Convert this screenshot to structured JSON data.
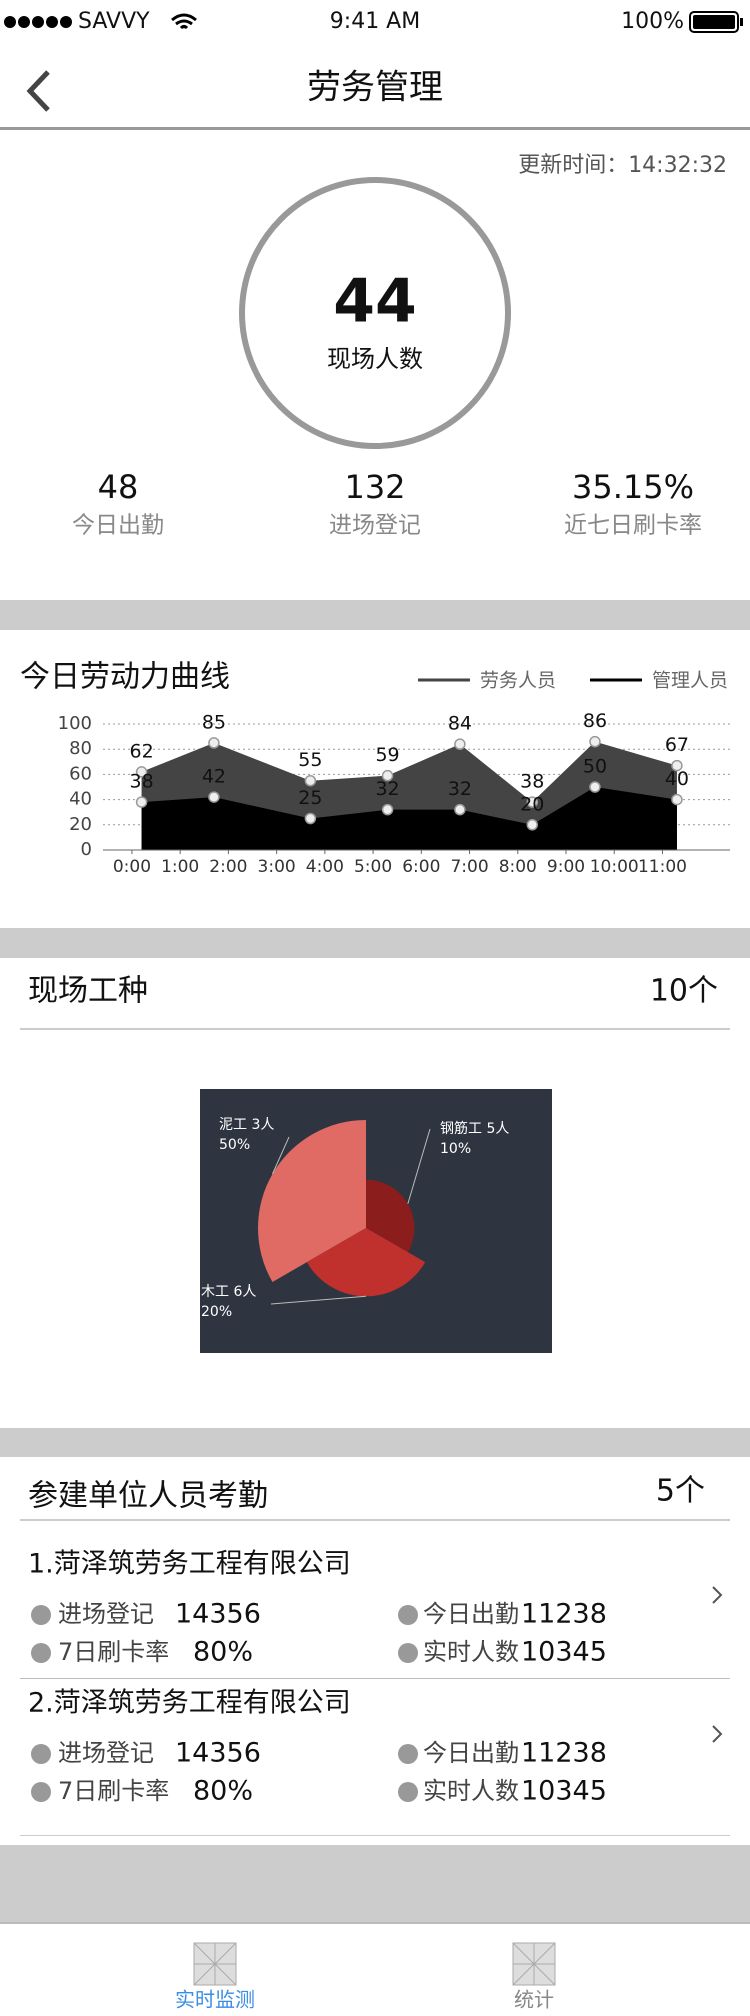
{
  "status_bar": {
    "carrier": "SAVVY",
    "time": "9:41 AM",
    "battery": "100%"
  },
  "nav": {
    "title": "劳务管理"
  },
  "summary": {
    "updated": "更新时间：14:32:32",
    "onsite": {
      "value": "44",
      "label": "现场人数"
    },
    "stats": [
      {
        "value": "48",
        "label": "今日出勤"
      },
      {
        "value": "132",
        "label": "进场登记"
      },
      {
        "value": "35.15%",
        "label": "近七日刷卡率"
      }
    ]
  },
  "chart_data": [
    {
      "type": "area",
      "title": "今日劳动力曲线",
      "x": [
        0.2,
        1.7,
        3.7,
        5.3,
        6.8,
        8.3,
        9.6,
        11.3
      ],
      "series": [
        {
          "name": "劳务人员",
          "color": "#444444",
          "values": [
            62,
            85,
            55,
            59,
            84,
            38,
            86,
            67
          ]
        },
        {
          "name": "管理人员",
          "color": "#000000",
          "values": [
            38,
            42,
            25,
            32,
            32,
            20,
            50,
            40
          ]
        }
      ],
      "xlim": [
        -0.6,
        12.4
      ],
      "xticks": [
        {
          "value": 0,
          "label": "0:00"
        },
        {
          "value": 1,
          "label": "1:00"
        },
        {
          "value": 2,
          "label": "2:00"
        },
        {
          "value": 3,
          "label": "3:00"
        },
        {
          "value": 4,
          "label": "4:00"
        },
        {
          "value": 5,
          "label": "5:00"
        },
        {
          "value": 6,
          "label": "6:00"
        },
        {
          "value": 7,
          "label": "7:00"
        },
        {
          "value": 8,
          "label": "8:00"
        },
        {
          "value": 9,
          "label": "9:00"
        },
        {
          "value": 10,
          "label": "10:00"
        },
        {
          "value": 11,
          "label": "11:00"
        }
      ],
      "ylim": [
        0,
        100
      ],
      "yticks": [
        0,
        20,
        40,
        60,
        80,
        100
      ],
      "grid": true,
      "legend": "top-right"
    },
    {
      "type": "pie",
      "categories": [
        "泥工 3人",
        "钢筋工 5人",
        "木工 6人"
      ],
      "values": [
        50,
        10,
        20
      ],
      "value_labels": [
        "50%",
        "10%",
        "20%"
      ],
      "colors": [
        "#e06a64",
        "#8c1d1d",
        "#c0312d"
      ]
    }
  ],
  "work_types": {
    "title": "现场工种",
    "count": "10个"
  },
  "units": {
    "title": "参建单位人员考勤",
    "count": "5个",
    "companies": [
      {
        "name": "1.菏泽筑劳务工程有限公司",
        "metrics": [
          {
            "label": "进场登记",
            "value": "14356"
          },
          {
            "label": "今日出勤",
            "value": "11238"
          },
          {
            "label": "7日刷卡率",
            "value": "80%"
          },
          {
            "label": "实时人数",
            "value": "10345"
          }
        ]
      },
      {
        "name": "2.菏泽筑劳务工程有限公司",
        "metrics": [
          {
            "label": "进场登记",
            "value": "14356"
          },
          {
            "label": "今日出勤",
            "value": "11238"
          },
          {
            "label": "7日刷卡率",
            "value": "80%"
          },
          {
            "label": "实时人数",
            "value": "10345"
          }
        ]
      }
    ]
  },
  "tabs": [
    "实时监测",
    "统计"
  ]
}
